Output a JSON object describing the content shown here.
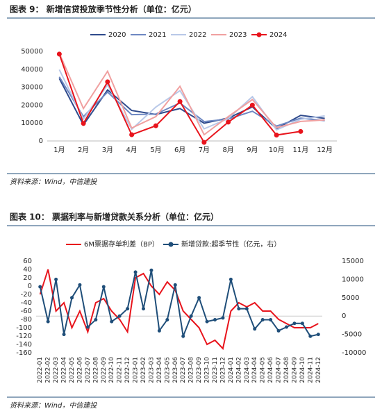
{
  "chart_data": [
    {
      "type": "line",
      "title": "图表 9：  新增信贷投放季节性分析（单位：亿元）",
      "source": "资料来源：Wind，中信建投",
      "categories": [
        "1月",
        "2月",
        "3月",
        "4月",
        "5月",
        "6月",
        "7月",
        "8月",
        "9月",
        "10月",
        "11月",
        "12月"
      ],
      "series": [
        {
          "name": "2020",
          "color": "#2e4a8c",
          "markers": false,
          "values": [
            34900,
            9000,
            28500,
            17000,
            14800,
            18100,
            9900,
            12800,
            19000,
            6900,
            14300,
            12600
          ]
        },
        {
          "name": "2021",
          "color": "#6d87c2",
          "markers": false,
          "values": [
            35800,
            13600,
            27300,
            14700,
            15000,
            21200,
            10800,
            12200,
            16600,
            8300,
            12700,
            11300
          ]
        },
        {
          "name": "2022",
          "color": "#b8c8e8",
          "markers": false,
          "values": [
            39800,
            12300,
            31300,
            6500,
            18900,
            28100,
            6800,
            12500,
            24700,
            6200,
            12100,
            14000
          ]
        },
        {
          "name": "2023",
          "color": "#f0a0a0",
          "markers": false,
          "values": [
            49000,
            18100,
            38900,
            7200,
            13600,
            30500,
            3500,
            13600,
            23100,
            7400,
            10900,
            11700
          ]
        },
        {
          "name": "2024",
          "color": "#e8141c",
          "markers": true,
          "values": [
            48500,
            9800,
            33000,
            3500,
            8500,
            22000,
            -800,
            10500,
            20000,
            3300,
            5300,
            null
          ]
        }
      ],
      "ylim": [
        0,
        50000
      ],
      "yticks": [
        0,
        10000,
        20000,
        30000,
        40000,
        50000
      ],
      "grid": false,
      "legend": "top"
    },
    {
      "type": "line",
      "title": "图表 10：  票据利率与新增贷款关系分析（单位：亿元）",
      "source": "资料来源：Wind，中信建投",
      "categories": [
        "2022-01",
        "2022-02",
        "2022-03",
        "2022-04",
        "2022-05",
        "2022-06",
        "2022-07",
        "2022-08",
        "2022-09",
        "2022-10",
        "2022-11",
        "2022-12",
        "2023-01",
        "2023-02",
        "2023-03",
        "2023-04",
        "2023-05",
        "2023-06",
        "2023-07",
        "2023-08",
        "2023-09",
        "2023-10",
        "2023-11",
        "2023-12",
        "2024-01",
        "2024-02",
        "2024-03",
        "2024-04",
        "2024-05",
        "2024-06",
        "2024-07",
        "2024-08",
        "2024-09",
        "2024-10",
        "2024-11",
        "2024-12"
      ],
      "series": [
        {
          "name": "6M票据存单利差（BP）",
          "color": "#e8141c",
          "markers": false,
          "values": [
            -20,
            40,
            -60,
            -40,
            -100,
            -60,
            -110,
            -40,
            -30,
            -60,
            -80,
            -110,
            20,
            30,
            0,
            -20,
            10,
            -10,
            -60,
            -80,
            -100,
            -140,
            -130,
            -150,
            -60,
            -40,
            -50,
            -40,
            -60,
            -60,
            -80,
            -90,
            -100,
            -100,
            -100,
            -90
          ]
        },
        {
          "name": "新增贷款:超季节性（亿元，右）",
          "color": "#1f4e79",
          "markers": true,
          "axis": "y2",
          "values": [
            8000,
            -1500,
            10000,
            -5000,
            5000,
            8500,
            -3000,
            -1000,
            8000,
            -1500,
            0,
            2000,
            12000,
            2000,
            12500,
            -4000,
            -1000,
            8500,
            -5500,
            0,
            5000,
            -1500,
            -1000,
            -500,
            10000,
            2000,
            2000,
            -3500,
            -1000,
            -1000,
            -4000,
            -3000,
            -2000,
            -2000,
            -5500,
            -5000
          ]
        }
      ],
      "ylim": [
        -160,
        60
      ],
      "yticks": [
        -160,
        -140,
        -120,
        -100,
        -80,
        -60,
        -40,
        -20,
        0,
        20,
        40,
        60
      ],
      "y2lim": [
        -10000,
        15000
      ],
      "y2ticks": [
        -10000,
        -5000,
        0,
        5000,
        10000,
        15000
      ],
      "grid": false,
      "legend": "top"
    }
  ]
}
